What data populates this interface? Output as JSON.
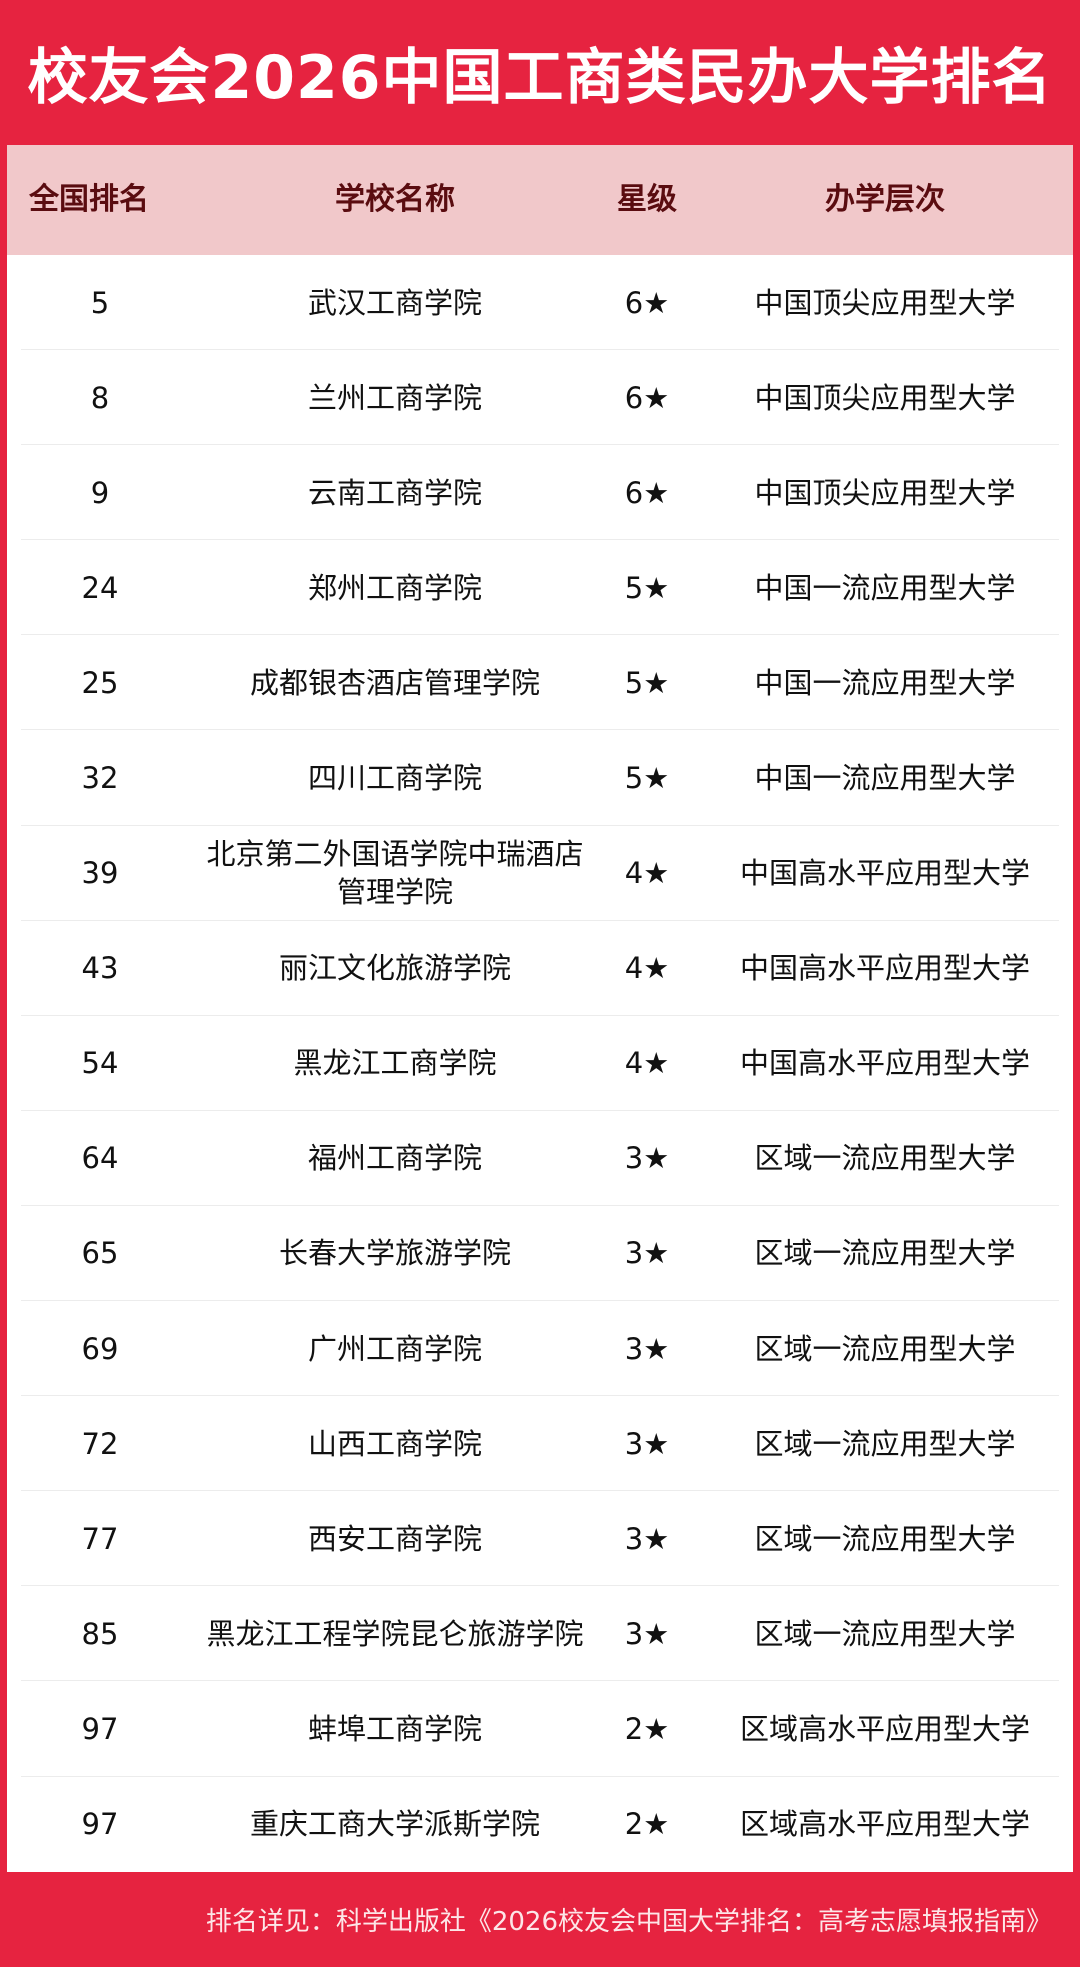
{
  "title": "校友会2026中国工商类民办大学排名",
  "colors": {
    "accent": "#e62340",
    "header_bg": "#f1c8ca",
    "header_text": "#5a0c10"
  },
  "table": {
    "headers": [
      "全国排名",
      "学校名称",
      "星级",
      "办学层次"
    ],
    "rows": [
      {
        "rank": "5",
        "name": "武汉工商学院",
        "stars": "6★",
        "level": "中国顶尖应用型大学"
      },
      {
        "rank": "8",
        "name": "兰州工商学院",
        "stars": "6★",
        "level": "中国顶尖应用型大学"
      },
      {
        "rank": "9",
        "name": "云南工商学院",
        "stars": "6★",
        "level": "中国顶尖应用型大学"
      },
      {
        "rank": "24",
        "name": "郑州工商学院",
        "stars": "5★",
        "level": "中国一流应用型大学"
      },
      {
        "rank": "25",
        "name": "成都银杏酒店管理学院",
        "stars": "5★",
        "level": "中国一流应用型大学"
      },
      {
        "rank": "32",
        "name": "四川工商学院",
        "stars": "5★",
        "level": "中国一流应用型大学"
      },
      {
        "rank": "39",
        "name": "北京第二外国语学院中瑞酒店管理学院",
        "stars": "4★",
        "level": "中国高水平应用型大学"
      },
      {
        "rank": "43",
        "name": "丽江文化旅游学院",
        "stars": "4★",
        "level": "中国高水平应用型大学"
      },
      {
        "rank": "54",
        "name": "黑龙江工商学院",
        "stars": "4★",
        "level": "中国高水平应用型大学"
      },
      {
        "rank": "64",
        "name": "福州工商学院",
        "stars": "3★",
        "level": "区域一流应用型大学"
      },
      {
        "rank": "65",
        "name": "长春大学旅游学院",
        "stars": "3★",
        "level": "区域一流应用型大学"
      },
      {
        "rank": "69",
        "name": "广州工商学院",
        "stars": "3★",
        "level": "区域一流应用型大学"
      },
      {
        "rank": "72",
        "name": "山西工商学院",
        "stars": "3★",
        "level": "区域一流应用型大学"
      },
      {
        "rank": "77",
        "name": "西安工商学院",
        "stars": "3★",
        "level": "区域一流应用型大学"
      },
      {
        "rank": "85",
        "name": "黑龙江工程学院昆仑旅游学院",
        "stars": "3★",
        "level": "区域一流应用型大学"
      },
      {
        "rank": "97",
        "name": "蚌埠工商学院",
        "stars": "2★",
        "level": "区域高水平应用型大学"
      },
      {
        "rank": "97",
        "name": "重庆工商大学派斯学院",
        "stars": "2★",
        "level": "区域高水平应用型大学"
      }
    ]
  },
  "footer": "排名详见：科学出版社《2026校友会中国大学排名：高考志愿填报指南》"
}
